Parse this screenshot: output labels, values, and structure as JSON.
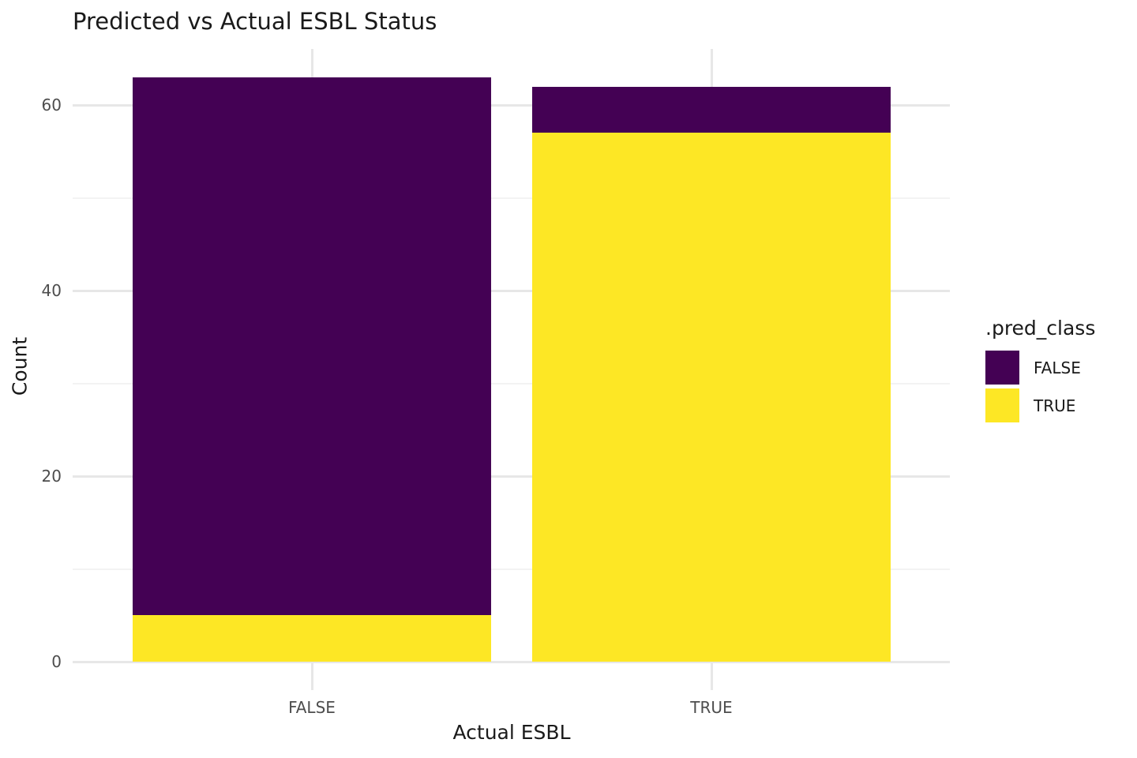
{
  "title": "Predicted vs Actual ESBL Status",
  "axes": {
    "x_label": "Actual ESBL",
    "y_label": "Count",
    "x_tick_labels": [
      "FALSE",
      "TRUE"
    ],
    "y_tick_labels": [
      "0",
      "20",
      "40",
      "60"
    ]
  },
  "legend": {
    "title": ".pred_class",
    "entries": [
      {
        "label": "FALSE",
        "color": "#440154"
      },
      {
        "label": "TRUE",
        "color": "#FDE725"
      }
    ]
  },
  "colors": {
    "pred_false": "#440154",
    "pred_true": "#FDE725",
    "grid_major": "#E7E7E7",
    "grid_minor": "#F3F3F3",
    "tick_label": "#4D4D4D",
    "text": "#1A1A1A",
    "background": "#FFFFFF"
  },
  "chart_data": {
    "type": "bar",
    "stacked": true,
    "title": "Predicted vs Actual ESBL Status",
    "xlabel": "Actual ESBL",
    "ylabel": "Count",
    "categories": [
      "FALSE",
      "TRUE"
    ],
    "series": [
      {
        "name": "FALSE",
        "color": "#440154",
        "values": [
          58,
          5
        ]
      },
      {
        "name": "TRUE",
        "color": "#FDE725",
        "values": [
          5,
          57
        ]
      }
    ],
    "stack_order_bottom_to_top": [
      "TRUE",
      "FALSE"
    ],
    "category_totals": [
      63,
      62
    ],
    "y_ticks_major": [
      0,
      20,
      40,
      60
    ],
    "y_ticks_minor": [
      10,
      30,
      50
    ],
    "ylim": [
      0,
      66
    ],
    "grid": true,
    "legend_title": ".pred_class",
    "legend_position": "right"
  }
}
